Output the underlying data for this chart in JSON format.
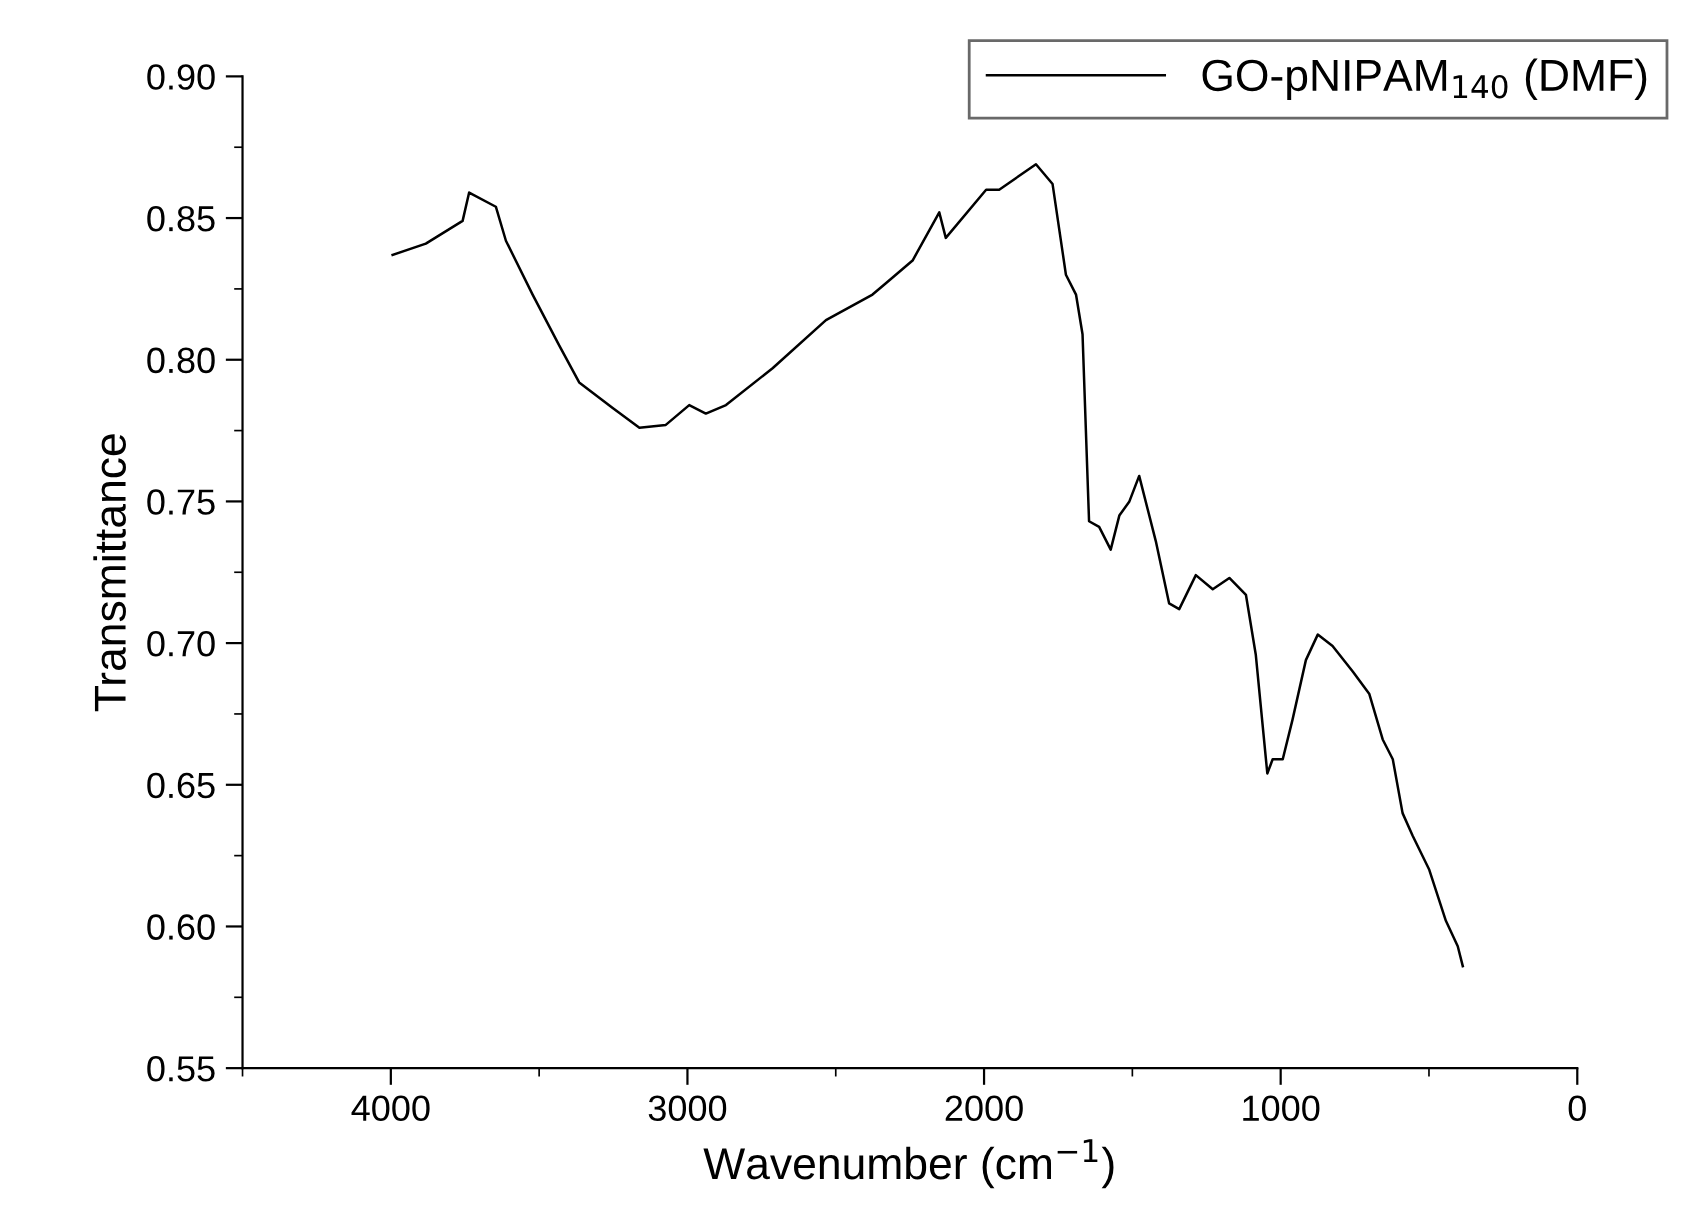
{
  "chart_data": {
    "type": "line",
    "xlabel": "Wavenumber (cm$^{−1}$)",
    "ylabel": "Transmittance",
    "xlim": [
      4500,
      0
    ],
    "xticks": [
      4000,
      3000,
      2000,
      1000,
      0
    ],
    "ylim": [
      0.55,
      0.9
    ],
    "yticks": [
      {
        "value": 0.55,
        "label": "0.55"
      },
      {
        "value": 0.6,
        "label": "0.60"
      },
      {
        "value": 0.65,
        "label": "0.65"
      },
      {
        "value": 0.7,
        "label": "0.70"
      },
      {
        "value": 0.75,
        "label": "0.75"
      },
      {
        "value": 0.8,
        "label": "0.80"
      },
      {
        "value": 0.85,
        "label": "0.85"
      },
      {
        "value": 0.9,
        "label": "0.90"
      }
    ],
    "grid": false,
    "legend": "top right",
    "marker": "none",
    "line_style": "solid",
    "series": [
      {
        "name": "GO-pNIPAM$_{140}$ (DMF)",
        "color": "#000000",
        "x": [
          3994,
          3882,
          3758,
          3736,
          3646,
          3612,
          3522,
          3432,
          3365,
          3252,
          3162,
          3073,
          2994,
          2938,
          2870,
          2713,
          2533,
          2376,
          2331,
          2241,
          2151,
          2129,
          1993,
          1949,
          1825,
          1769,
          1724,
          1690,
          1668,
          1646,
          1612,
          1573,
          1544,
          1510,
          1477,
          1421,
          1376,
          1342,
          1286,
          1229,
          1173,
          1117,
          1084,
          1045,
          1027,
          993,
          960,
          915,
          875,
          825,
          757,
          701,
          656,
          622,
          589,
          555,
          499,
          443,
          403,
          386
        ],
        "values": [
          0.837,
          0.841,
          0.849,
          0.859,
          0.854,
          0.842,
          0.823,
          0.805,
          0.792,
          0.783,
          0.776,
          0.777,
          0.784,
          0.781,
          0.784,
          0.797,
          0.814,
          0.823,
          0.827,
          0.835,
          0.852,
          0.843,
          0.86,
          0.86,
          0.869,
          0.862,
          0.83,
          0.823,
          0.809,
          0.743,
          0.741,
          0.733,
          0.745,
          0.75,
          0.759,
          0.736,
          0.714,
          0.712,
          0.724,
          0.719,
          0.723,
          0.717,
          0.696,
          0.654,
          0.659,
          0.659,
          0.673,
          0.694,
          0.703,
          0.699,
          0.69,
          0.682,
          0.666,
          0.659,
          0.64,
          0.632,
          0.62,
          0.602,
          0.593,
          0.586
        ]
      }
    ]
  }
}
